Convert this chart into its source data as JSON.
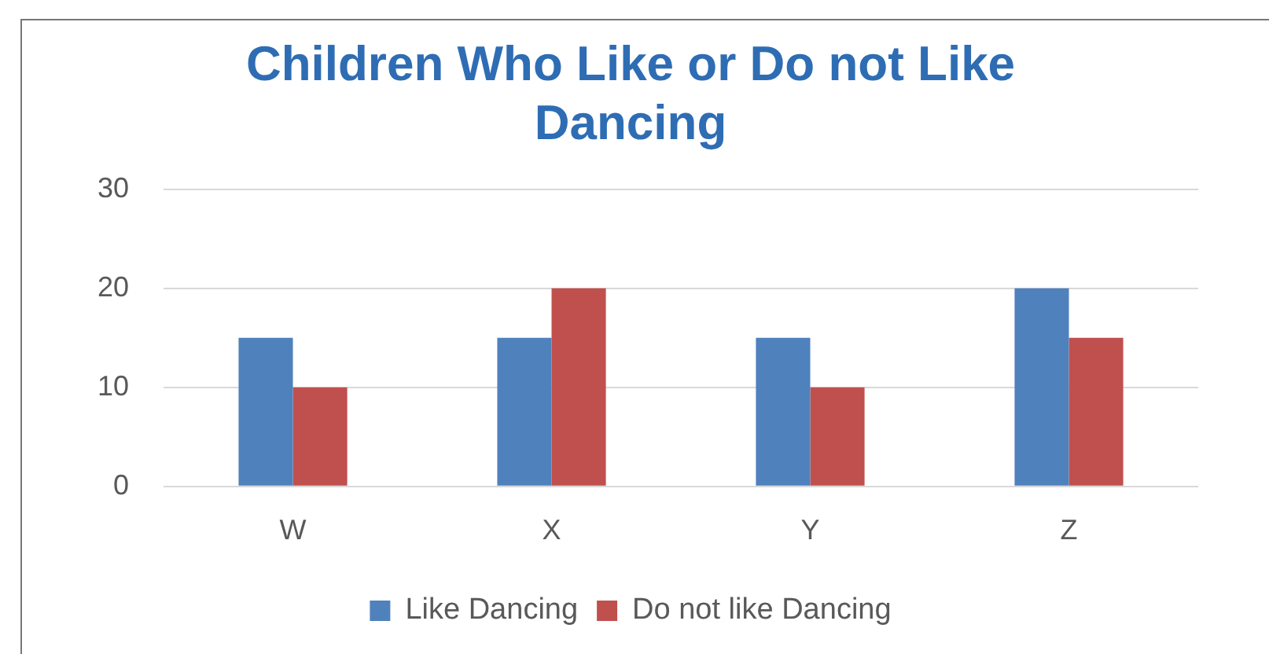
{
  "chart_data": {
    "type": "bar",
    "title": "Children Who Like or Do not Like Dancing",
    "categories": [
      "W",
      "X",
      "Y",
      "Z"
    ],
    "series": [
      {
        "name": "Like Dancing",
        "color": "#4f81bd",
        "values": [
          15,
          15,
          15,
          20
        ]
      },
      {
        "name": "Do not like Dancing",
        "color": "#c0504d",
        "values": [
          10,
          20,
          10,
          15
        ]
      }
    ],
    "ylim": [
      0,
      30
    ],
    "yticks": [
      0,
      10,
      20,
      30
    ],
    "grid": "y",
    "legend": "bottom"
  }
}
